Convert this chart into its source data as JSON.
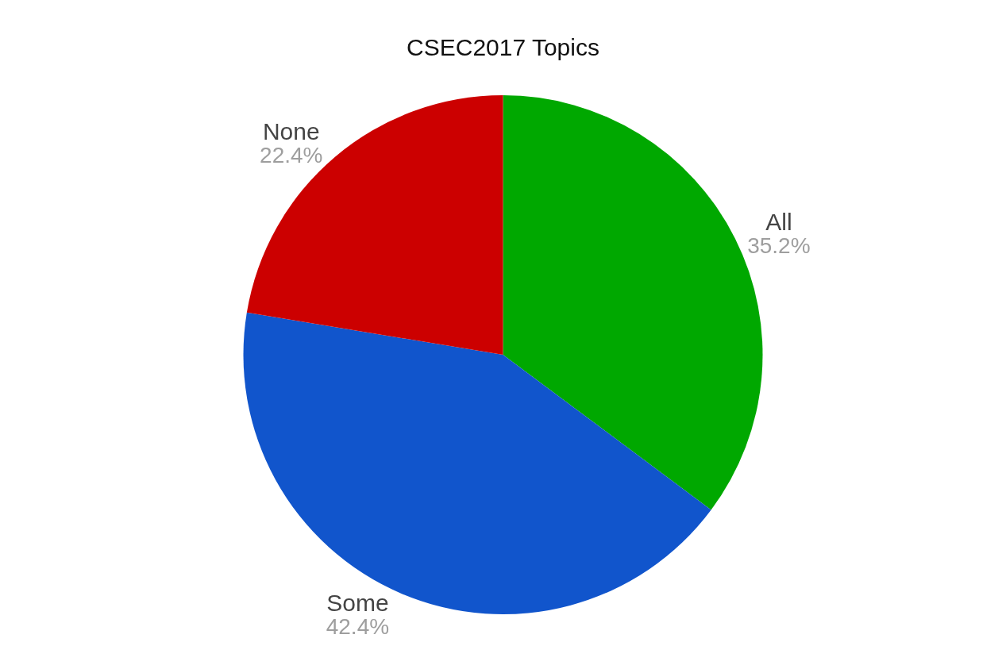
{
  "chart_data": {
    "type": "pie",
    "title": "CSEC2017 Topics",
    "categories": [
      "All",
      "Some",
      "None"
    ],
    "values": [
      35.2,
      42.4,
      22.4
    ],
    "value_labels": [
      "35.2%",
      "42.4%",
      "22.4%"
    ],
    "colors": [
      "#00a800",
      "#1155cc",
      "#cc0000"
    ],
    "legend": false
  }
}
